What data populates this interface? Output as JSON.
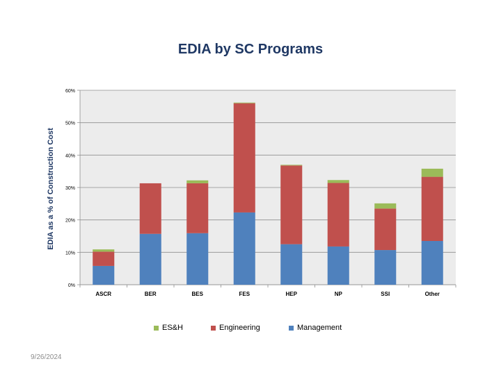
{
  "slide": {
    "title": "EDIA by SC Programs",
    "date": "9/26/2024"
  },
  "chart_data": {
    "type": "bar",
    "stacked": true,
    "title": "EDIA by SC Programs",
    "xlabel": "",
    "ylabel": "EDIA as a % of Construction Cost",
    "ylim": [
      0,
      60
    ],
    "yticks": [
      0,
      10,
      20,
      30,
      40,
      50,
      60
    ],
    "ytick_labels": [
      "0%",
      "10%",
      "20%",
      "30%",
      "40%",
      "50%",
      "60%"
    ],
    "grid": true,
    "legend_position": "bottom",
    "categories": [
      "ASCR",
      "BER",
      "BES",
      "FES",
      "HEP",
      "NP",
      "SSI",
      "Other"
    ],
    "series": [
      {
        "name": "Management",
        "color": "#4f81bd",
        "values": [
          5.8,
          15.7,
          15.9,
          22.3,
          12.5,
          11.8,
          10.7,
          13.5
        ]
      },
      {
        "name": "Engineering",
        "color": "#c0504d",
        "values": [
          4.4,
          15.6,
          15.4,
          33.7,
          24.3,
          19.6,
          12.8,
          19.8
        ]
      },
      {
        "name": "ES&H",
        "color": "#9bbb59",
        "values": [
          0.7,
          0.0,
          0.9,
          0.2,
          0.2,
          0.9,
          1.6,
          2.5
        ]
      }
    ],
    "legend_order": [
      "ES&H",
      "Engineering",
      "Management"
    ]
  }
}
